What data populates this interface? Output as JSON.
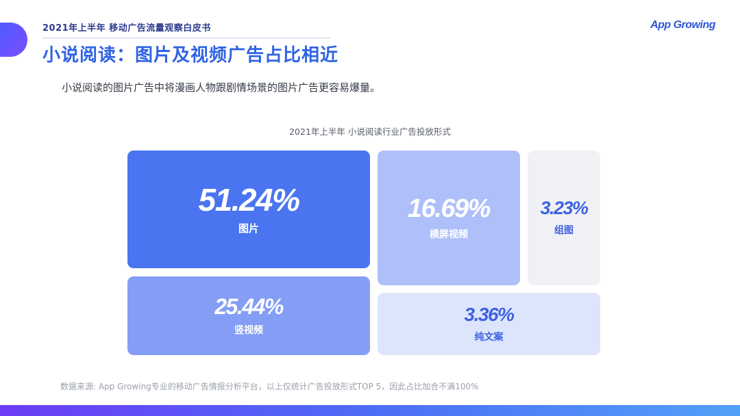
{
  "header": {
    "report_title": "2021年上半年 移动广告流量观察白皮书",
    "brand": "App Growing"
  },
  "page": {
    "title": "小说阅读：图片及视频广告占比相近",
    "subtitle": "小说阅读的图片广告中将漫画人物跟剧情场景的图片广告更容易爆量。",
    "source_note": "数据来源: App Growing专业的移动广告情报分析平台，以上仅统计广告投放形式TOP 5，因此占比加合不满100%"
  },
  "chart_data": {
    "type": "treemap",
    "title": "2021年上半年 小说阅读行业广告投放形式",
    "unit": "%",
    "items": [
      {
        "label": "图片",
        "value": 51.24,
        "display": "51.24%",
        "color": "#4a74f0",
        "text_color": "#ffffff"
      },
      {
        "label": "竖视频",
        "value": 25.44,
        "display": "25.44%",
        "color": "#849ef5",
        "text_color": "#ffffff"
      },
      {
        "label": "横屏视频",
        "value": 16.69,
        "display": "16.69%",
        "color": "#aebff9",
        "text_color": "#ffffff"
      },
      {
        "label": "纯文案",
        "value": 3.36,
        "display": "3.36%",
        "color": "#dde5fd",
        "text_color": "#3e62e0"
      },
      {
        "label": "组图",
        "value": 3.23,
        "display": "3.23%",
        "color": "#f0f1f4",
        "text_color": "#3e62e0"
      }
    ]
  }
}
